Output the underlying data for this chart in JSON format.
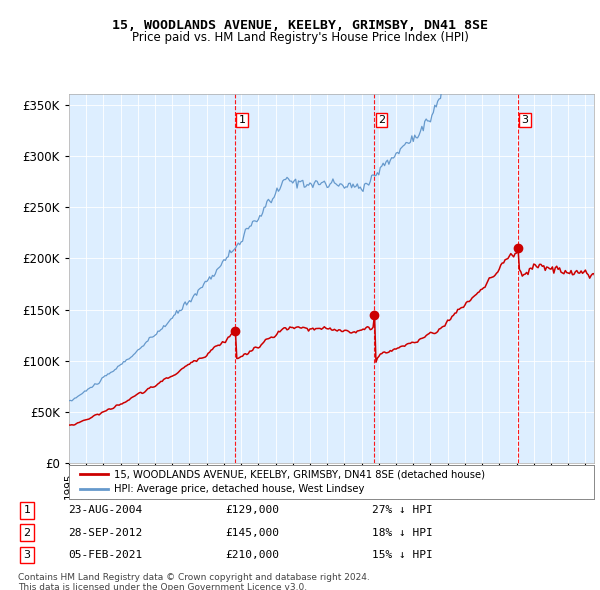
{
  "title": "15, WOODLANDS AVENUE, KEELBY, GRIMSBY, DN41 8SE",
  "subtitle": "Price paid vs. HM Land Registry's House Price Index (HPI)",
  "transactions": [
    {
      "num": 1,
      "date": "23-AUG-2004",
      "date_x": 2004.644,
      "price": 129000,
      "hpi_pct": "27% ↓ HPI"
    },
    {
      "num": 2,
      "date": "28-SEP-2012",
      "date_x": 2012.744,
      "price": 145000,
      "hpi_pct": "18% ↓ HPI"
    },
    {
      "num": 3,
      "date": "05-FEB-2021",
      "date_x": 2021.096,
      "price": 210000,
      "hpi_pct": "15% ↓ HPI"
    }
  ],
  "legend_line1": "15, WOODLANDS AVENUE, KEELBY, GRIMSBY, DN41 8SE (detached house)",
  "legend_line2": "HPI: Average price, detached house, West Lindsey",
  "footer1": "Contains HM Land Registry data © Crown copyright and database right 2024.",
  "footer2": "This data is licensed under the Open Government Licence v3.0.",
  "red_color": "#cc0000",
  "blue_color": "#6699cc",
  "bg_color": "#ddeeff",
  "ylim": [
    0,
    360000
  ],
  "xlim_start": 1995,
  "xlim_end": 2025.5,
  "yticks": [
    0,
    50000,
    100000,
    150000,
    200000,
    250000,
    300000,
    350000
  ],
  "ylabels": [
    "£0",
    "£50K",
    "£100K",
    "£150K",
    "£200K",
    "£250K",
    "£300K",
    "£350K"
  ]
}
